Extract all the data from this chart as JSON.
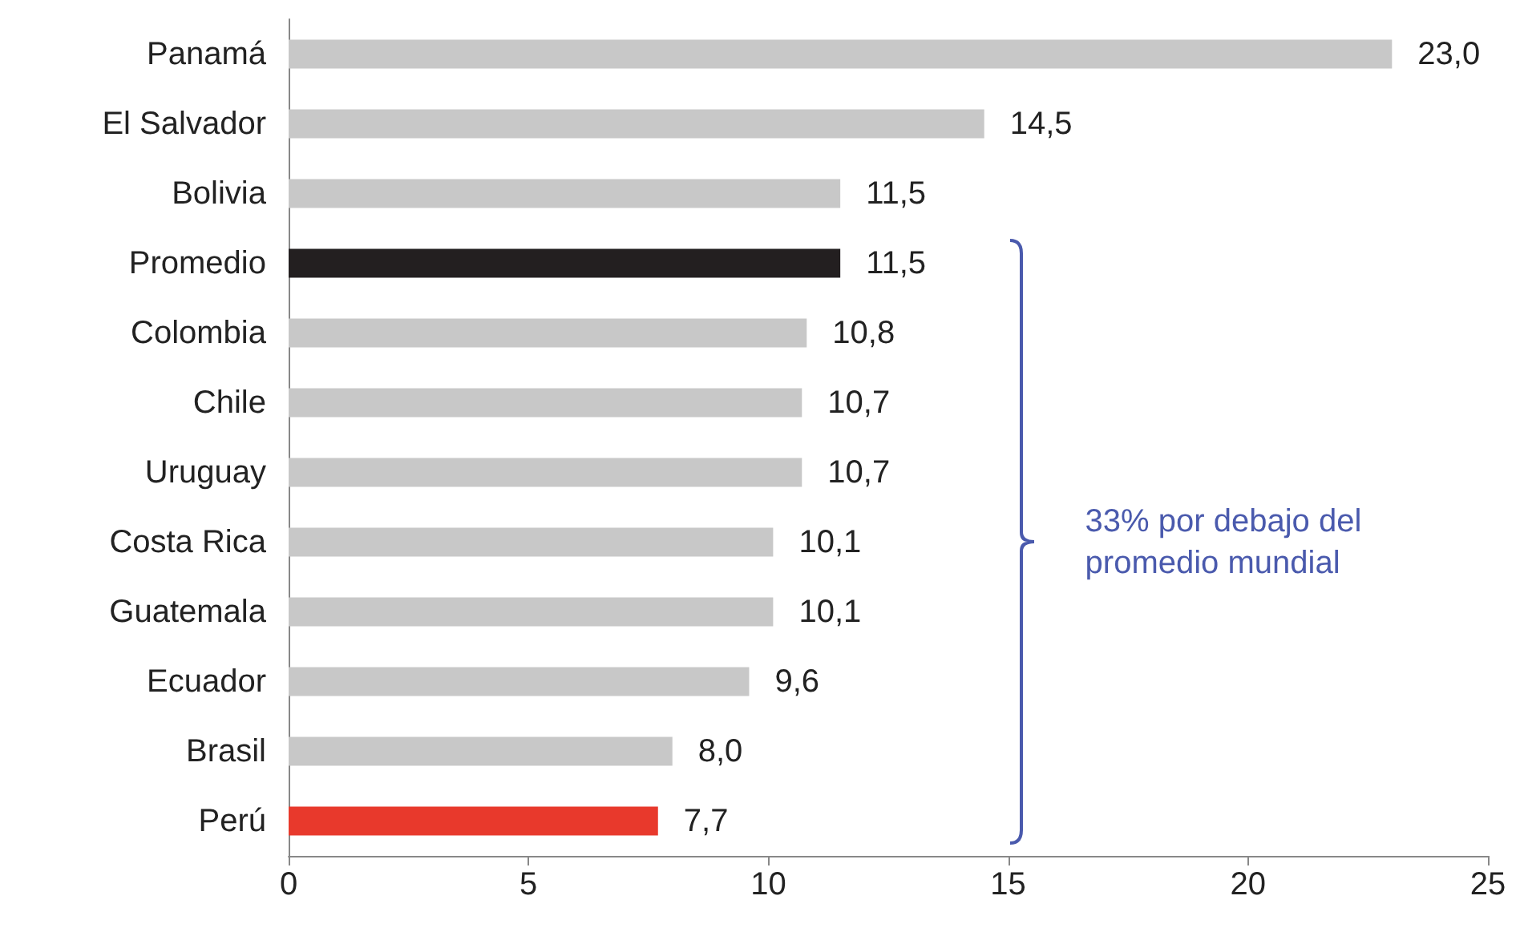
{
  "chart_data": {
    "type": "bar",
    "orientation": "horizontal",
    "categories": [
      "Panamá",
      "El Salvador",
      "Bolivia",
      "Promedio",
      "Colombia",
      "Chile",
      "Uruguay",
      "Costa Rica",
      "Guatemala",
      "Ecuador",
      "Brasil",
      "Perú"
    ],
    "values": [
      23.0,
      14.5,
      11.5,
      11.5,
      10.8,
      10.7,
      10.7,
      10.1,
      10.1,
      9.6,
      8.0,
      7.7
    ],
    "colors": [
      "#c8c8c8",
      "#c8c8c8",
      "#c8c8c8",
      "#231f20",
      "#c8c8c8",
      "#c8c8c8",
      "#c8c8c8",
      "#c8c8c8",
      "#c8c8c8",
      "#c8c8c8",
      "#c8c8c8",
      "#e8392c"
    ],
    "value_labels": [
      "23,0",
      "14,5",
      "11,5",
      "11,5",
      "10,8",
      "10,7",
      "10,7",
      "10,1",
      "10,1",
      "9,6",
      "8,0",
      "7,7"
    ],
    "xlim": [
      0,
      25
    ],
    "xticks": [
      0,
      5,
      10,
      15,
      20,
      25
    ],
    "grid": false,
    "annotations": [
      "33% por debajo del promedio mundial"
    ]
  }
}
